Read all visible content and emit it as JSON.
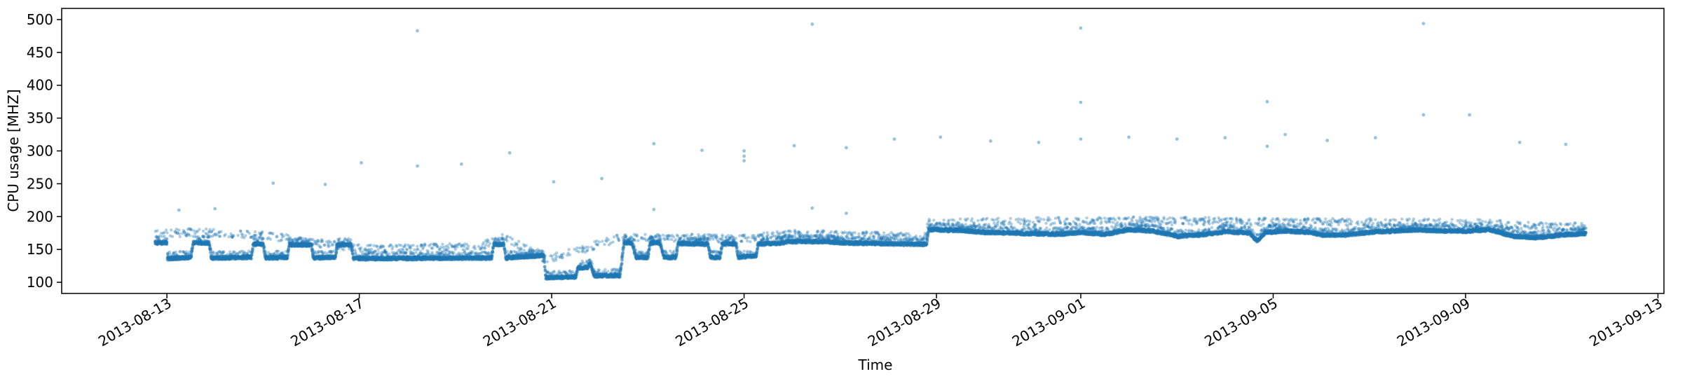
{
  "chart_data": {
    "type": "scatter",
    "title": "",
    "xlabel": "Time",
    "ylabel": "CPU usage [MHZ]",
    "xlim": [
      "2013-08-10T19:30",
      "2013-09-13T03:00"
    ],
    "ylim": [
      83,
      517
    ],
    "x_ticks": [
      "2013-08-13",
      "2013-08-17",
      "2013-08-21",
      "2013-08-25",
      "2013-08-29",
      "2013-09-01",
      "2013-09-05",
      "2013-09-09",
      "2013-09-13"
    ],
    "y_ticks": [
      100,
      150,
      200,
      250,
      300,
      350,
      400,
      450,
      500
    ],
    "grid": false,
    "legend": "none",
    "marker_color": "#1f77b4",
    "marker_alpha": 0.45,
    "series": [
      {
        "baseline": [
          [
            "2013-08-12T18:00",
            160
          ],
          [
            "2013-08-13T00:00",
            160
          ],
          [
            "2013-08-13T00:01",
            136
          ],
          [
            "2013-08-13T12:00",
            138
          ],
          [
            "2013-08-13T13:00",
            160
          ],
          [
            "2013-08-13T21:00",
            160
          ],
          [
            "2013-08-13T22:00",
            137
          ],
          [
            "2013-08-14T18:00",
            138
          ],
          [
            "2013-08-14T19:00",
            158
          ],
          [
            "2013-08-15T00:00",
            158
          ],
          [
            "2013-08-15T01:00",
            137
          ],
          [
            "2013-08-15T12:00",
            138
          ],
          [
            "2013-08-15T13:00",
            157
          ],
          [
            "2013-08-16T00:00",
            157
          ],
          [
            "2013-08-16T01:00",
            137
          ],
          [
            "2013-08-16T12:00",
            138
          ],
          [
            "2013-08-16T13:00",
            157
          ],
          [
            "2013-08-16T20:00",
            157
          ],
          [
            "2013-08-16T21:00",
            136
          ],
          [
            "2013-08-19T18:00",
            137
          ],
          [
            "2013-08-19T19:00",
            157
          ],
          [
            "2013-08-20T00:00",
            158
          ],
          [
            "2013-08-20T01:00",
            137
          ],
          [
            "2013-08-20T20:00",
            141
          ],
          [
            "2013-08-20T21:00",
            107
          ],
          [
            "2013-08-21T12:00",
            108
          ],
          [
            "2013-08-21T13:00",
            122
          ],
          [
            "2013-08-21T18:00",
            123
          ],
          [
            "2013-08-21T19:00",
            130
          ],
          [
            "2013-08-21T21:00",
            110
          ],
          [
            "2013-08-22T10:00",
            110
          ],
          [
            "2013-08-22T12:00",
            160
          ],
          [
            "2013-08-22T16:00",
            160
          ],
          [
            "2013-08-22T18:00",
            138
          ],
          [
            "2013-08-23T00:00",
            138
          ],
          [
            "2013-08-23T01:00",
            160
          ],
          [
            "2013-08-23T06:00",
            160
          ],
          [
            "2013-08-23T08:00",
            138
          ],
          [
            "2013-08-23T14:00",
            138
          ],
          [
            "2013-08-23T15:00",
            159
          ],
          [
            "2013-08-24T06:00",
            158
          ],
          [
            "2013-08-24T07:00",
            138
          ],
          [
            "2013-08-24T12:00",
            138
          ],
          [
            "2013-08-24T13:00",
            158
          ],
          [
            "2013-08-24T20:00",
            158
          ],
          [
            "2013-08-24T21:00",
            138
          ],
          [
            "2013-08-25T06:00",
            140
          ],
          [
            "2013-08-25T07:00",
            158
          ],
          [
            "2013-08-25T20:00",
            160
          ],
          [
            "2013-08-25T22:00",
            162
          ],
          [
            "2013-08-26T18:00",
            162
          ],
          [
            "2013-08-27T00:00",
            160
          ],
          [
            "2013-08-28T12:00",
            158
          ],
          [
            "2013-08-28T19:00",
            158
          ],
          [
            "2013-08-28T20:00",
            180
          ],
          [
            "2013-08-29T12:00",
            179
          ],
          [
            "2013-08-30T00:00",
            176
          ],
          [
            "2013-08-31T12:00",
            173
          ],
          [
            "2013-09-01T00:00",
            176
          ],
          [
            "2013-09-01T12:00",
            173
          ],
          [
            "2013-09-02T00:00",
            180
          ],
          [
            "2013-09-02T12:00",
            178
          ],
          [
            "2013-09-03T00:00",
            170
          ],
          [
            "2013-09-03T12:00",
            172
          ],
          [
            "2013-09-04T00:00",
            177
          ],
          [
            "2013-09-04T12:00",
            175
          ],
          [
            "2013-09-04T16:00",
            163
          ],
          [
            "2013-09-04T20:00",
            176
          ],
          [
            "2013-09-05T06:00",
            178
          ],
          [
            "2013-09-05T18:00",
            176
          ],
          [
            "2013-09-06T00:00",
            172
          ],
          [
            "2013-09-06T12:00",
            172
          ],
          [
            "2013-09-07T00:00",
            176
          ],
          [
            "2013-09-07T12:00",
            178
          ],
          [
            "2013-09-08T00:00",
            180
          ],
          [
            "2013-09-08T12:00",
            178
          ],
          [
            "2013-09-09T00:00",
            178
          ],
          [
            "2013-09-09T12:00",
            180
          ],
          [
            "2013-09-10T00:00",
            170
          ],
          [
            "2013-09-10T12:00",
            168
          ],
          [
            "2013-09-11T00:00",
            172
          ],
          [
            "2013-09-11T12:00",
            174
          ]
        ],
        "upper_band": [
          [
            "2013-08-12T18:00",
            180
          ],
          [
            "2013-08-13T12:00",
            182
          ],
          [
            "2013-08-15T00:00",
            178
          ],
          [
            "2013-08-17T00:00",
            157
          ],
          [
            "2013-08-19T12:00",
            160
          ],
          [
            "2013-08-20T00:00",
            175
          ],
          [
            "2013-08-20T21:00",
            140
          ],
          [
            "2013-08-22T12:00",
            175
          ],
          [
            "2013-08-25T00:00",
            172
          ],
          [
            "2013-08-26T00:00",
            180
          ],
          [
            "2013-08-28T18:00",
            175
          ],
          [
            "2013-08-28T20:00",
            196
          ],
          [
            "2013-09-01T12:00",
            200
          ],
          [
            "2013-09-05T00:00",
            198
          ],
          [
            "2013-09-09T00:00",
            196
          ],
          [
            "2013-09-11T12:00",
            190
          ]
        ],
        "outliers": [
          [
            "2013-08-13T06:00",
            210
          ],
          [
            "2013-08-14T00:00",
            212
          ],
          [
            "2013-08-15T05:00",
            251
          ],
          [
            "2013-08-16T07:00",
            249
          ],
          [
            "2013-08-17T01:00",
            282
          ],
          [
            "2013-08-18T05:00",
            483
          ],
          [
            "2013-08-18T05:00",
            277
          ],
          [
            "2013-08-19T03:00",
            280
          ],
          [
            "2013-08-20T03:00",
            297
          ],
          [
            "2013-08-21T01:00",
            253
          ],
          [
            "2013-08-22T01:00",
            258
          ],
          [
            "2013-08-23T03:00",
            311
          ],
          [
            "2013-08-23T03:00",
            211
          ],
          [
            "2013-08-24T03:00",
            301
          ],
          [
            "2013-08-25T00:00",
            300
          ],
          [
            "2013-08-25T00:00",
            292
          ],
          [
            "2013-08-25T00:00",
            285
          ],
          [
            "2013-08-26T01:00",
            308
          ],
          [
            "2013-08-26T10:00",
            493
          ],
          [
            "2013-08-26T10:00",
            213
          ],
          [
            "2013-08-27T03:00",
            305
          ],
          [
            "2013-08-27T03:00",
            205
          ],
          [
            "2013-08-28T03:00",
            318
          ],
          [
            "2013-08-29T02:00",
            321
          ],
          [
            "2013-08-30T03:00",
            315
          ],
          [
            "2013-08-31T03:00",
            313
          ],
          [
            "2013-09-01T00:00",
            487
          ],
          [
            "2013-09-01T00:00",
            374
          ],
          [
            "2013-09-01T00:00",
            318
          ],
          [
            "2013-09-02T00:00",
            321
          ],
          [
            "2013-09-03T00:00",
            318
          ],
          [
            "2013-09-04T00:00",
            320
          ],
          [
            "2013-09-04T21:00",
            375
          ],
          [
            "2013-09-04T21:00",
            307
          ],
          [
            "2013-09-05T06:00",
            325
          ],
          [
            "2013-09-06T03:00",
            316
          ],
          [
            "2013-09-07T03:00",
            320
          ],
          [
            "2013-09-08T03:00",
            494
          ],
          [
            "2013-09-08T03:00",
            355
          ],
          [
            "2013-09-09T02:00",
            355
          ],
          [
            "2013-09-10T03:00",
            313
          ],
          [
            "2013-09-11T02:00",
            310
          ]
        ]
      }
    ]
  }
}
